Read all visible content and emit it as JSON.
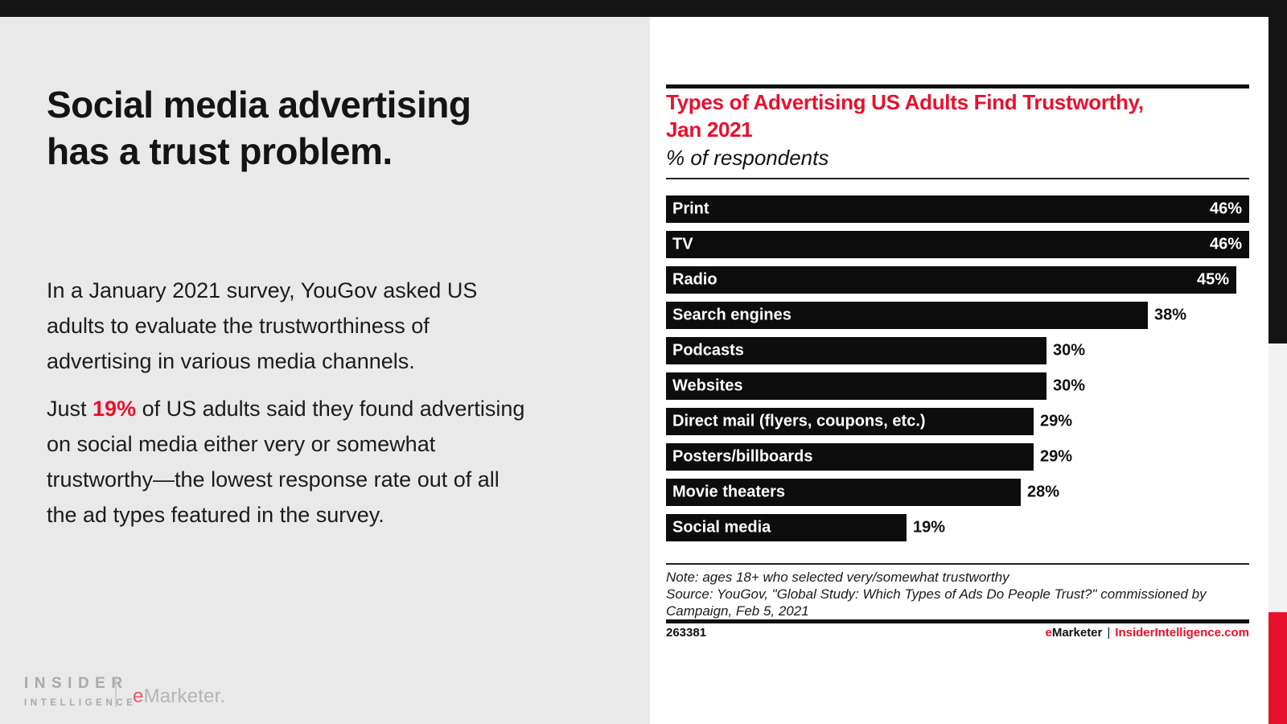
{
  "left_panel": {
    "headline_lines": [
      "Social media advertising",
      "has a trust problem."
    ],
    "p1_lines": [
      "In a January 2021 survey, YouGov asked US",
      "adults to evaluate the trustworthiness of",
      "advertising in various media channels."
    ],
    "p2_prefix": "Just ",
    "p2_highlight": "19%",
    "p2_suffix": " of US adults said they found advertising",
    "p2_rest_lines": [
      "on social media either very or somewhat",
      "trustworthy—the lowest response rate out of all",
      "the ad types featured in the survey."
    ],
    "logo": {
      "insider": "INSIDER",
      "intelligence": "INTELLIGENCE",
      "emarketer_e": "e",
      "emarketer_rest": "Marketer."
    }
  },
  "chart": {
    "title_lines": [
      "Types of Advertising US Adults Find Trustworthy,",
      "Jan 2021"
    ],
    "subtitle": "% of respondents",
    "note": "Note: ages 18+ who selected very/somewhat trustworthy",
    "source_lines": [
      "Source: YouGov, \"Global Study: Which Types of Ads Do People Trust?\" commissioned by",
      "Campaign, Feb 5, 2021"
    ],
    "footer_id": "263381",
    "footer_brand_e": "e",
    "footer_brand_rest": "Marketer",
    "footer_sep": "|",
    "footer_site": "InsiderIntelligence.com"
  },
  "chart_data": {
    "type": "bar",
    "orientation": "horizontal",
    "title": "Types of Advertising US Adults Find Trustworthy, Jan 2021",
    "subtitle": "% of respondents",
    "categories": [
      "Print",
      "TV",
      "Radio",
      "Search engines",
      "Podcasts",
      "Websites",
      "Direct mail (flyers, coupons, etc.)",
      "Posters/billboards",
      "Movie theaters",
      "Social media"
    ],
    "values": [
      46,
      46,
      45,
      38,
      30,
      30,
      29,
      29,
      28,
      19
    ],
    "unit": "%",
    "xlim": [
      0,
      46
    ],
    "grid": false,
    "legend": false,
    "bar_color": "#0d0d0d",
    "label_color": "#ffffff",
    "value_label_inside_when_near_max": true
  },
  "colors": {
    "accent_red": "#e8112d",
    "bar_black": "#0d0d0d",
    "left_bg": "#e9e9e9",
    "edge_gray": "#f2f2f2",
    "logo_gray": "#a9a9a9"
  }
}
